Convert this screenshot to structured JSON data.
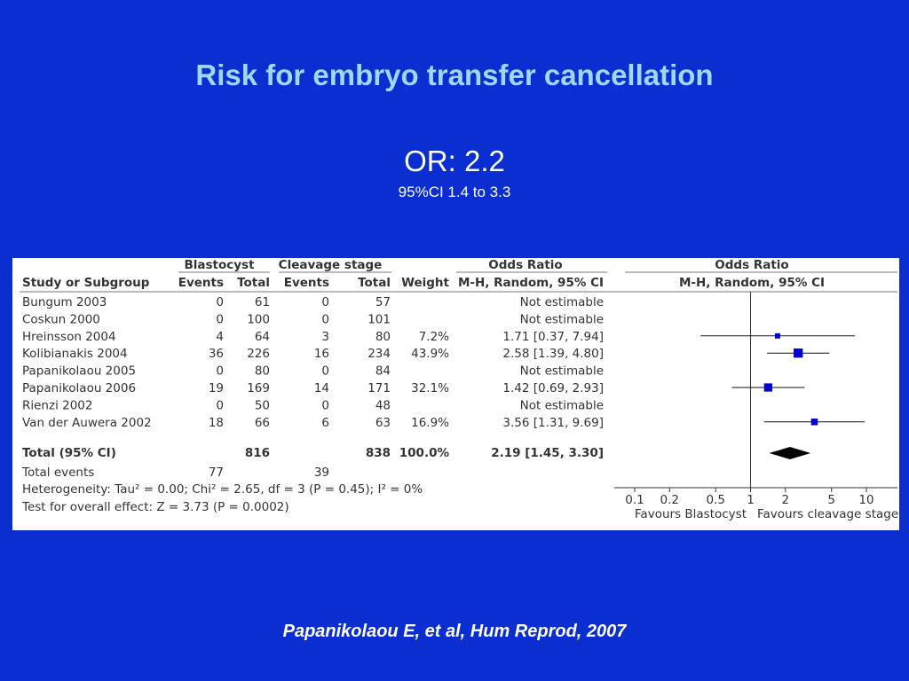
{
  "slide": {
    "title": "Risk for embryo transfer cancellation",
    "or_main": "OR: 2.2",
    "or_ci": "95%CI 1.4 to 3.3",
    "citation": "Papanikolaou E,  et al, Hum Reprod, 2007",
    "colors": {
      "background": "#0a2ed0",
      "title": "#9fd8f5",
      "marker": "#0000cc"
    }
  },
  "chart_data": {
    "type": "table",
    "group_headers": {
      "blastocyst": "Blastocyst",
      "cleavage": "Cleavage stage",
      "or_text": "Odds Ratio",
      "or_plot": "Odds Ratio"
    },
    "columns": {
      "study": "Study or Subgroup",
      "b_events": "Events",
      "b_total": "Total",
      "c_events": "Events",
      "c_total": "Total",
      "weight": "Weight",
      "method": "M-H, Random, 95% CI",
      "plot_method": "M-H, Random, 95% CI"
    },
    "studies": [
      {
        "name": "Bungum 2003",
        "b_events": "0",
        "b_total": "61",
        "c_events": "0",
        "c_total": "57",
        "weight": "",
        "or_text": "Not estimable"
      },
      {
        "name": "Coskun 2000",
        "b_events": "0",
        "b_total": "100",
        "c_events": "0",
        "c_total": "101",
        "weight": "",
        "or_text": "Not estimable"
      },
      {
        "name": "Hreinsson 2004",
        "b_events": "4",
        "b_total": "64",
        "c_events": "3",
        "c_total": "80",
        "weight": "7.2%",
        "or_text": "1.71 [0.37, 7.94]",
        "or": 1.71,
        "lo": 0.37,
        "hi": 7.94,
        "w": 7.2
      },
      {
        "name": "Kolibianakis 2004",
        "b_events": "36",
        "b_total": "226",
        "c_events": "16",
        "c_total": "234",
        "weight": "43.9%",
        "or_text": "2.58 [1.39, 4.80]",
        "or": 2.58,
        "lo": 1.39,
        "hi": 4.8,
        "w": 43.9
      },
      {
        "name": "Papanikolaou 2005",
        "b_events": "0",
        "b_total": "80",
        "c_events": "0",
        "c_total": "84",
        "weight": "",
        "or_text": "Not estimable"
      },
      {
        "name": "Papanikolaou 2006",
        "b_events": "19",
        "b_total": "169",
        "c_events": "14",
        "c_total": "171",
        "weight": "32.1%",
        "or_text": "1.42 [0.69, 2.93]",
        "or": 1.42,
        "lo": 0.69,
        "hi": 2.93,
        "w": 32.1
      },
      {
        "name": "Rienzi 2002",
        "b_events": "0",
        "b_total": "50",
        "c_events": "0",
        "c_total": "48",
        "weight": "",
        "or_text": "Not estimable"
      },
      {
        "name": "Van der Auwera 2002",
        "b_events": "18",
        "b_total": "66",
        "c_events": "6",
        "c_total": "63",
        "weight": "16.9%",
        "or_text": "3.56 [1.31, 9.69]",
        "or": 3.56,
        "lo": 1.31,
        "hi": 9.69,
        "w": 16.9
      }
    ],
    "total": {
      "label": "Total (95% CI)",
      "b_total": "816",
      "c_total": "838",
      "weight": "100.0%",
      "or_text": "2.19 [1.45, 3.30]",
      "or": 2.19,
      "lo": 1.45,
      "hi": 3.3
    },
    "total_events": {
      "label": "Total events",
      "b": "77",
      "c": "39"
    },
    "heterogeneity": "Heterogeneity: Tau² = 0.00; Chi² = 2.65, df = 3 (P = 0.45); I² = 0%",
    "overall_effect": "Test for overall effect: Z = 3.73 (P = 0.0002)",
    "x_axis": {
      "scale": "log",
      "ticks": [
        0.1,
        0.2,
        0.5,
        1,
        2,
        5,
        10
      ],
      "tick_labels": [
        "0.1",
        "0.2",
        "0.5",
        "1",
        "2",
        "5",
        "10"
      ],
      "xlim": [
        0.1,
        10
      ]
    },
    "favours_left": "Favours Blastocyst",
    "favours_right": "Favours cleavage stage"
  }
}
